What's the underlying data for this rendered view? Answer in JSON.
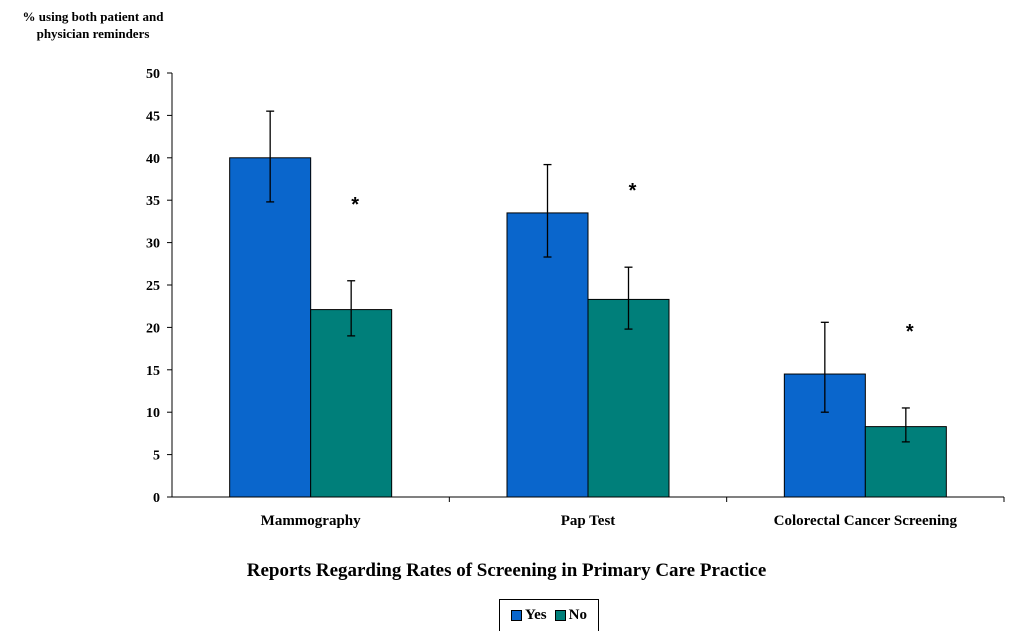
{
  "chart_data": {
    "type": "bar",
    "title": "Reports Regarding Rates of Screening in Primary Care Practice",
    "ylabel": "% using both patient and physician reminders",
    "ylabel_lines": [
      "% using both patient and",
      "physician reminders"
    ],
    "ylim": [
      0,
      50
    ],
    "yticks": [
      "0",
      "5",
      "10",
      "15",
      "20",
      "25",
      "30",
      "35",
      "40",
      "45",
      "50"
    ],
    "categories": [
      "Mammography",
      "Pap Test",
      "Colorectal Cancer Screening"
    ],
    "series": [
      {
        "name": "Yes",
        "color": "#0a66cc",
        "values": [
          40,
          33.5,
          14.5
        ],
        "err_low": [
          34.8,
          28.3,
          10
        ],
        "err_high": [
          45.5,
          39.2,
          20.6
        ]
      },
      {
        "name": "No",
        "color": "#007f7a",
        "values": [
          22.1,
          23.3,
          8.3
        ],
        "err_low": [
          19,
          19.8,
          6.5
        ],
        "err_high": [
          25.5,
          27.1,
          10.5
        ]
      }
    ],
    "annotations": [
      "*",
      "*",
      "*"
    ],
    "grid": false,
    "legend_position": "bottom"
  }
}
